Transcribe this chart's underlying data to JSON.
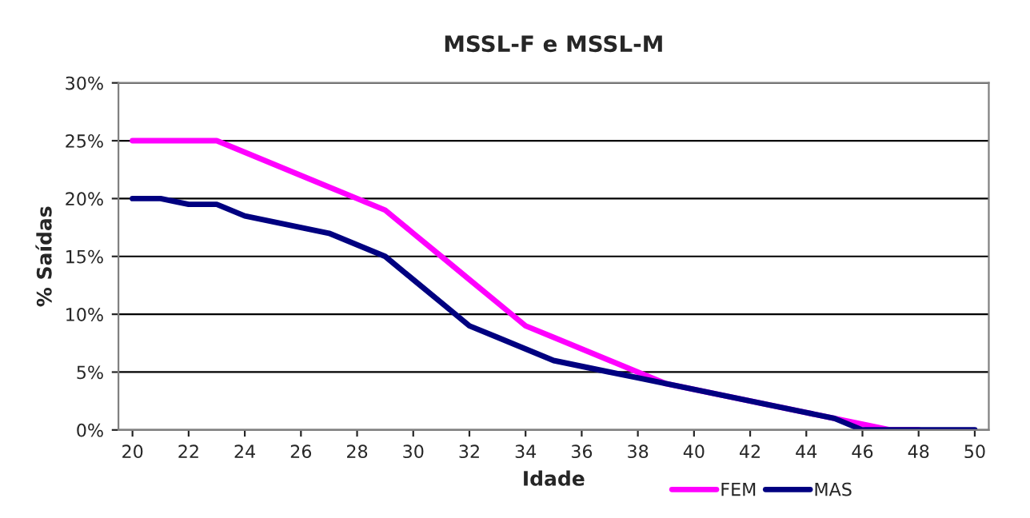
{
  "chart_data": {
    "type": "line",
    "title": "MSSL-F e MSSL-M",
    "xlabel": "Idade",
    "ylabel": "% Saídas",
    "x": [
      20,
      21,
      22,
      23,
      24,
      25,
      26,
      27,
      28,
      29,
      30,
      31,
      32,
      33,
      34,
      35,
      36,
      37,
      38,
      39,
      40,
      41,
      42,
      43,
      44,
      45,
      46,
      47,
      48,
      49,
      50
    ],
    "series": [
      {
        "name": "FEM",
        "color": "#ff00ff",
        "values": [
          25,
          25,
          25,
          25,
          24,
          23,
          22,
          21,
          20,
          19,
          17,
          15,
          13,
          11,
          9,
          8,
          7,
          6,
          5,
          4,
          3.5,
          3,
          2.5,
          2,
          1.5,
          1,
          0.5,
          0,
          0,
          null,
          null
        ]
      },
      {
        "name": "MAS",
        "color": "#000080",
        "values": [
          20,
          20,
          19.5,
          19.5,
          18.5,
          18,
          17.5,
          17,
          16,
          15,
          13,
          11,
          9,
          8,
          7,
          6,
          5.5,
          5,
          4.5,
          4,
          3.5,
          3,
          2.5,
          2,
          1.5,
          1,
          0,
          0,
          0,
          0,
          0
        ]
      }
    ],
    "xlim": [
      19.5,
      50.5
    ],
    "xticks": [
      20,
      22,
      24,
      26,
      28,
      30,
      32,
      34,
      36,
      38,
      40,
      42,
      44,
      46,
      48,
      50
    ],
    "ylim": [
      0,
      30
    ],
    "yticks": [
      {
        "value": 0,
        "label": "0%"
      },
      {
        "value": 5,
        "label": "5%"
      },
      {
        "value": 10,
        "label": "10%"
      },
      {
        "value": 15,
        "label": "15%"
      },
      {
        "value": 20,
        "label": "20%"
      },
      {
        "value": 25,
        "label": "25%"
      },
      {
        "value": 30,
        "label": "30%"
      }
    ],
    "grid": "y",
    "legend": "bottom right",
    "marker": "none",
    "line_style": "solid"
  }
}
